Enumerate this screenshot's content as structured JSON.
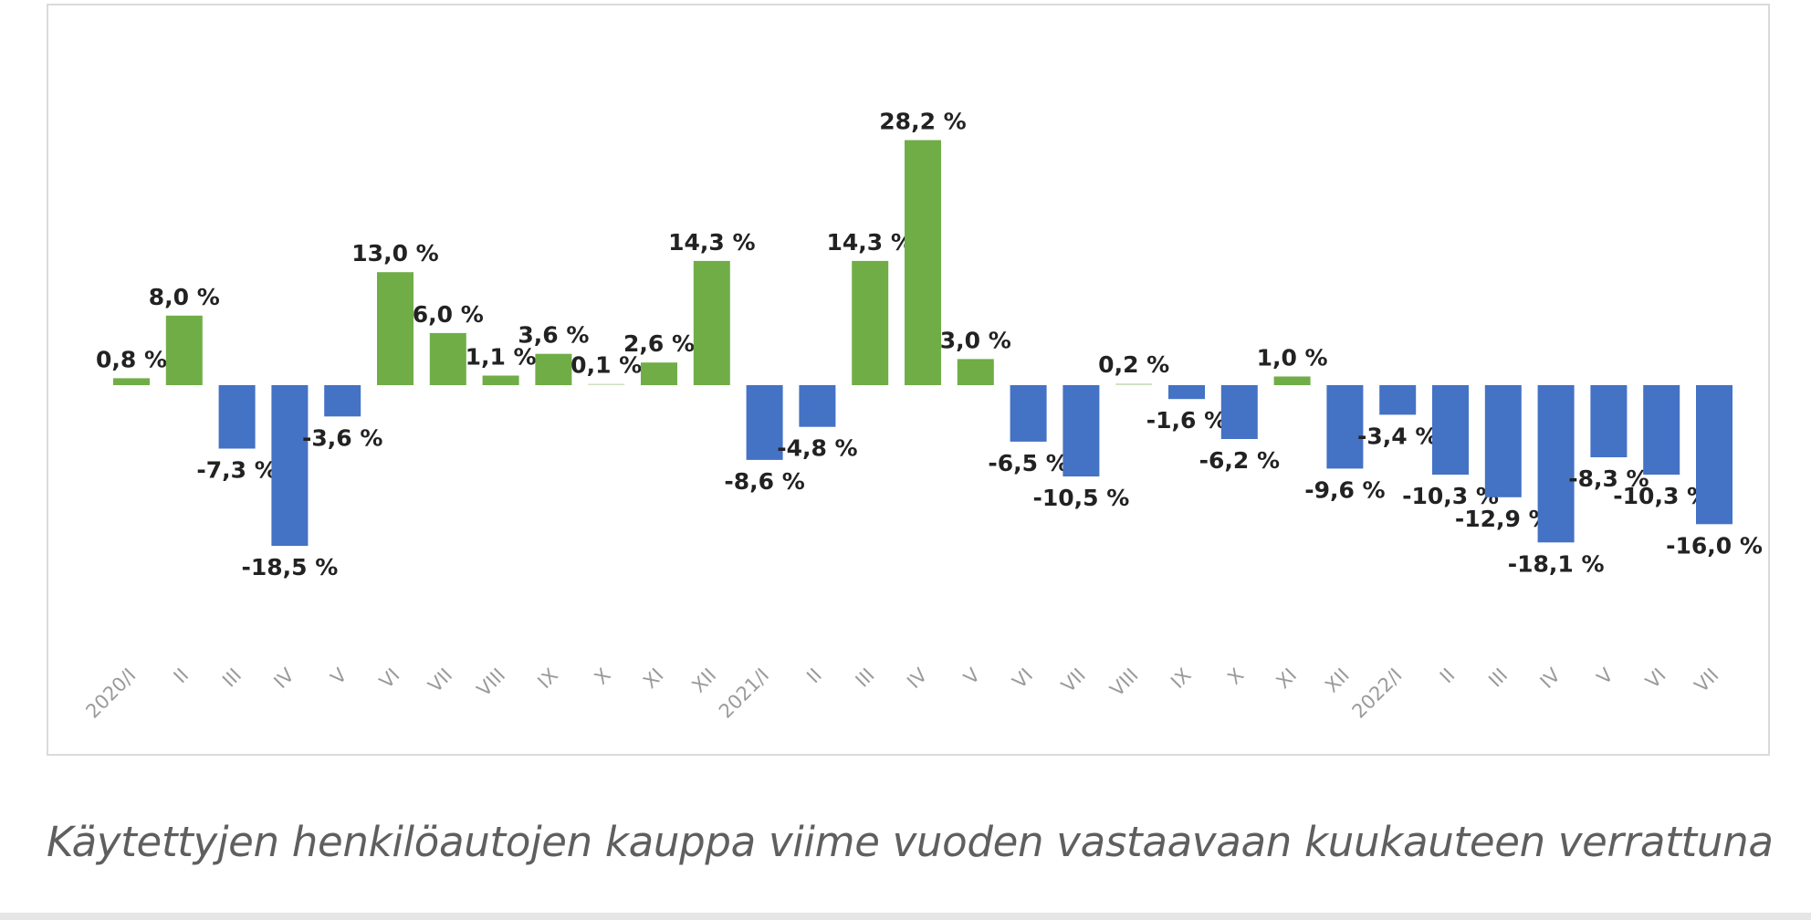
{
  "caption": "Käytettyjen henkilöautojen kauppa viime vuoden vastaavaan kuukauteen verrattuna",
  "chart_data": {
    "type": "bar",
    "title": "",
    "xlabel": "",
    "ylabel": "",
    "ylim": [
      -25,
      35
    ],
    "grid": false,
    "legend": "none",
    "colors": {
      "positive": "#70ad47",
      "negative": "#4472c4"
    },
    "categories": [
      "2020/I",
      "II",
      "III",
      "IV",
      "V",
      "VI",
      "VII",
      "VIII",
      "IX",
      "X",
      "XI",
      "XII",
      "2021/I",
      "II",
      "III",
      "IV",
      "V",
      "VI",
      "VII",
      "VIII",
      "IX",
      "X",
      "XI",
      "XII",
      "2022/I",
      "II",
      "III",
      "IV",
      "V",
      "VI",
      "VII"
    ],
    "values": [
      0.8,
      8.0,
      -7.3,
      -18.5,
      -3.6,
      13.0,
      6.0,
      1.1,
      3.6,
      0.1,
      2.6,
      14.3,
      -8.6,
      -4.8,
      14.3,
      28.2,
      3.0,
      -6.5,
      -10.5,
      0.2,
      -1.6,
      -6.2,
      1.0,
      -9.6,
      -3.4,
      -10.3,
      -12.9,
      -18.1,
      -8.3,
      -10.3,
      -16.0
    ],
    "data_labels": [
      "0,8 %",
      "8,0 %",
      "-7,3 %",
      "-18,5 %",
      "-3,6 %",
      "13,0 %",
      "6,0 %",
      "1,1 %",
      "3,6 %",
      "0,1 %",
      "2,6 %",
      "14,3 %",
      "-8,6 %",
      "-4,8 %",
      "14,3 %",
      "28,2 %",
      "3,0 %",
      "-6,5 %",
      "-10,5 %",
      "0,2 %",
      "-1,6 %",
      "-6,2 %",
      "1,0 %",
      "-9,6 %",
      "-3,4 %",
      "-10,3 %",
      "-12,9 %",
      "-18,1 %",
      "-8,3 %",
      "-10,3 %",
      "-16,0 %"
    ]
  }
}
